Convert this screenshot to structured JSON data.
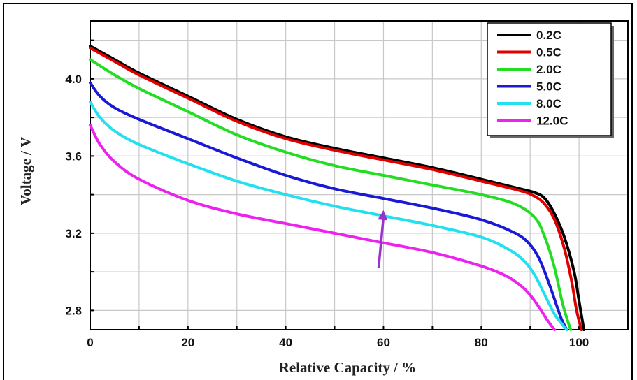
{
  "chart_data": {
    "type": "line",
    "xlabel": "Relative Capacity / %",
    "ylabel": "Voltage / V",
    "xlim": [
      0,
      110
    ],
    "ylim": [
      2.7,
      4.3
    ],
    "x_ticks": [
      0,
      20,
      40,
      60,
      80,
      100
    ],
    "y_ticks": [
      2.8,
      3.2,
      3.6,
      4.0
    ],
    "grid": true,
    "legend_position": "top-right",
    "series": [
      {
        "name": "0.2C",
        "color": "#000000",
        "x": [
          0,
          5,
          10,
          20,
          30,
          40,
          50,
          60,
          70,
          80,
          88,
          91,
          93,
          95,
          97,
          99,
          100,
          101
        ],
        "y": [
          4.17,
          4.1,
          4.03,
          3.91,
          3.79,
          3.7,
          3.64,
          3.59,
          3.54,
          3.48,
          3.43,
          3.41,
          3.38,
          3.3,
          3.18,
          3.0,
          2.85,
          2.7
        ]
      },
      {
        "name": "0.5C",
        "color": "#e00000",
        "x": [
          0,
          5,
          10,
          20,
          30,
          40,
          50,
          60,
          70,
          80,
          88,
          91,
          93,
          95,
          97,
          98.5,
          99.5,
          100.5
        ],
        "y": [
          4.16,
          4.09,
          4.02,
          3.9,
          3.78,
          3.69,
          3.63,
          3.58,
          3.53,
          3.47,
          3.42,
          3.39,
          3.35,
          3.27,
          3.12,
          2.95,
          2.8,
          2.7
        ]
      },
      {
        "name": "2.0C",
        "color": "#22dd22",
        "x": [
          0,
          5,
          10,
          20,
          30,
          40,
          50,
          60,
          70,
          80,
          87,
          91,
          93,
          95,
          96.5,
          97.5,
          98.3
        ],
        "y": [
          4.1,
          4.02,
          3.95,
          3.83,
          3.71,
          3.62,
          3.55,
          3.5,
          3.45,
          3.4,
          3.35,
          3.28,
          3.18,
          3.02,
          2.85,
          2.76,
          2.7
        ]
      },
      {
        "name": "5.0C",
        "color": "#1a1ad6",
        "x": [
          0,
          2,
          5,
          10,
          20,
          30,
          40,
          50,
          60,
          70,
          80,
          87,
          90,
          92,
          94,
          95.5,
          96.5,
          97.5
        ],
        "y": [
          3.98,
          3.91,
          3.85,
          3.79,
          3.69,
          3.59,
          3.5,
          3.43,
          3.38,
          3.33,
          3.27,
          3.2,
          3.14,
          3.06,
          2.93,
          2.82,
          2.75,
          2.7
        ]
      },
      {
        "name": "8.0C",
        "color": "#22e0ee",
        "x": [
          0,
          2,
          5,
          10,
          20,
          30,
          40,
          50,
          60,
          70,
          80,
          86,
          89,
          91,
          93,
          95,
          96.5,
          97.5
        ],
        "y": [
          3.88,
          3.8,
          3.73,
          3.66,
          3.56,
          3.47,
          3.4,
          3.34,
          3.29,
          3.24,
          3.18,
          3.11,
          3.05,
          2.98,
          2.88,
          2.78,
          2.73,
          2.7
        ]
      },
      {
        "name": "12.0C",
        "color": "#ee22ee",
        "x": [
          0,
          2,
          5,
          10,
          20,
          30,
          40,
          50,
          60,
          70,
          80,
          85,
          88,
          90,
          92,
          93.5,
          95
        ],
        "y": [
          3.76,
          3.66,
          3.57,
          3.48,
          3.37,
          3.3,
          3.25,
          3.2,
          3.15,
          3.1,
          3.03,
          2.98,
          2.93,
          2.88,
          2.81,
          2.75,
          2.7
        ]
      }
    ],
    "annotation": {
      "type": "arrow",
      "color": "#9933cc",
      "from": [
        59,
        3.02
      ],
      "to": [
        60,
        3.32
      ]
    }
  }
}
